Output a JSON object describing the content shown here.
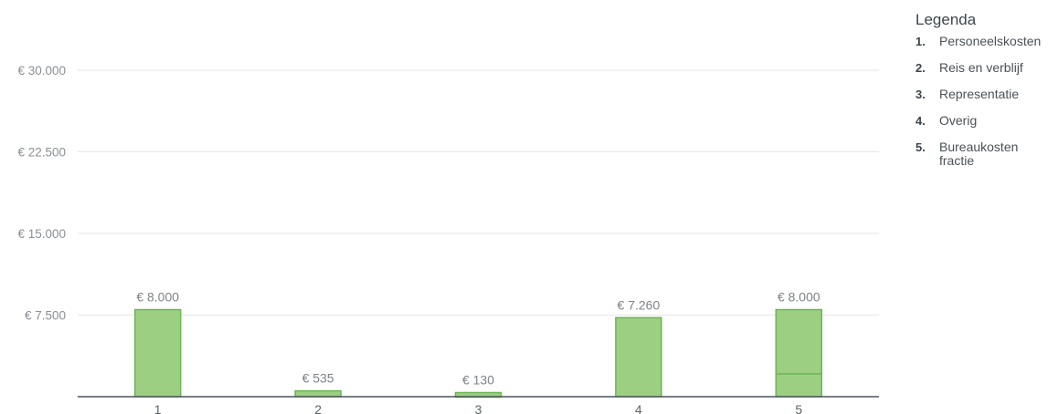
{
  "legend": {
    "title": "Legenda",
    "items": [
      {
        "num": "1.",
        "label": "Personeelskosten"
      },
      {
        "num": "2.",
        "label": "Reis en verblijf"
      },
      {
        "num": "3.",
        "label": "Representatie"
      },
      {
        "num": "4.",
        "label": "Overig"
      },
      {
        "num": "5.",
        "label": "Bureaukosten fractie"
      }
    ]
  },
  "chart_data": {
    "type": "bar",
    "categories": [
      "1",
      "2",
      "3",
      "4",
      "5"
    ],
    "values": [
      8000,
      535,
      130,
      7260,
      8000
    ],
    "data_labels": [
      "€ 8.000",
      "€ 535",
      "€ 130",
      "€ 7.260",
      "€ 8.000"
    ],
    "bar5_inner_segment": 2100,
    "yticks": [
      7500,
      15000,
      22500,
      30000
    ],
    "ytick_labels": [
      "€ 7.500",
      "€ 15.000",
      "€ 22.500",
      "€ 30.000"
    ],
    "ylim": [
      0,
      30000
    ],
    "grid": true,
    "legend_position": "right",
    "colors": {
      "bar_fill": "#9ccf82",
      "bar_stroke": "#6cb556",
      "grid": "#e3e6e3",
      "baseline": "#4b535b"
    }
  }
}
